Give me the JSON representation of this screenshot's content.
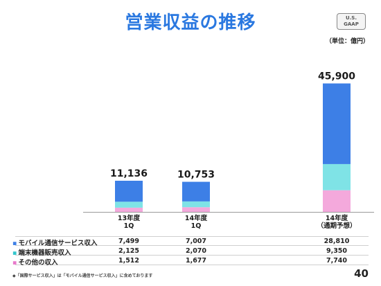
{
  "header": {
    "title": "営業収益の推移",
    "badge_line1": "U.S.",
    "badge_line2": "GAAP",
    "unit": "（単位：億円）"
  },
  "chart_data": {
    "type": "bar",
    "stacked": true,
    "categories": [
      "13年度\n1Q",
      "14年度\n1Q",
      "14年度\n（通期予想）"
    ],
    "totals": [
      "11,136",
      "10,753",
      "45,900"
    ],
    "series": [
      {
        "name": "その他の収入",
        "values": [
          1512,
          1677,
          7740
        ],
        "display": [
          "1,512",
          "1,677",
          "7,740"
        ],
        "color": "#f4a9dc"
      },
      {
        "name": "端末機器販売収入",
        "values": [
          2125,
          2070,
          9350
        ],
        "display": [
          "2,125",
          "2,070",
          "9,350"
        ],
        "color": "#7fe3e6"
      },
      {
        "name": "モバイル通信サービス収入",
        "values": [
          7499,
          7007,
          28810
        ],
        "display": [
          "7,499",
          "7,007",
          "28,810"
        ],
        "color": "#3d7fe6"
      }
    ],
    "ylim": [
      0,
      48000
    ]
  },
  "table": {
    "columns": [
      "13年度\n1Q",
      "14年度\n1Q",
      "14年度\n（通期予想）"
    ],
    "rows": [
      {
        "label": "モバイル通信サービス収入",
        "values": [
          "7,499",
          "7,007",
          "28,810"
        ],
        "color": "#3d7fe6"
      },
      {
        "label": "端末機器販売収入",
        "values": [
          "2,125",
          "2,070",
          "9,350"
        ],
        "color": "#33c6cc"
      },
      {
        "label": "その他の収入",
        "values": [
          "1,512",
          "1,677",
          "7,740"
        ],
        "color": "#e87acb"
      }
    ]
  },
  "footnote": "◆「国際サービス収入」は「モバイル通信サービス収入」に含めております",
  "page_number": "40"
}
